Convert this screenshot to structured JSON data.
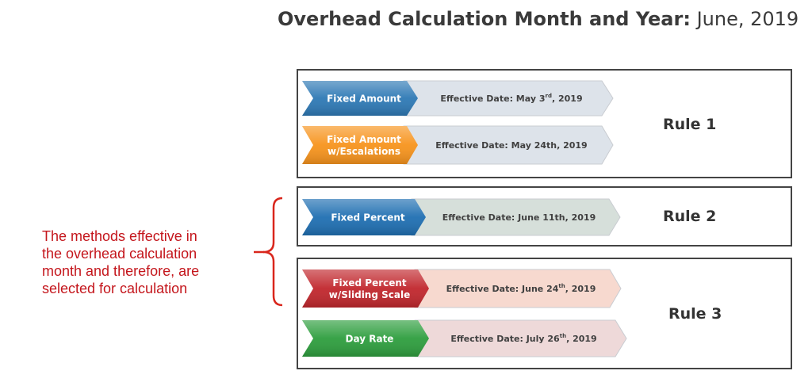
{
  "title": {
    "bold": "Overhead Calculation Month and Year:",
    "value": "June, 2019"
  },
  "rules": [
    {
      "label": "Rule 1",
      "methods": [
        {
          "name_lines": [
            "Fixed Amount"
          ],
          "date_prefix": "Effective Date: May 3",
          "date_sup": "rd",
          "date_suffix": ", 2019",
          "color": "#2e79b5",
          "date_color": "#dde3ea"
        },
        {
          "name_lines": [
            "Fixed Amount",
            "w/Escalations"
          ],
          "date_prefix": "Effective Date: May 24th, 2019",
          "date_sup": "",
          "date_suffix": "",
          "color": "#f7941d",
          "date_color": "#dde3ea"
        }
      ]
    },
    {
      "label": "Rule 2",
      "methods": [
        {
          "name_lines": [
            "Fixed Percent"
          ],
          "date_prefix": "Effective Date: June 11th, 2019",
          "date_sup": "",
          "date_suffix": "",
          "color": "#1f6fb2",
          "date_color": "#d6dfda"
        }
      ]
    },
    {
      "label": "Rule 3",
      "methods": [
        {
          "name_lines": [
            "Fixed Percent",
            "w/Sliding Scale"
          ],
          "date_prefix": "Effective Date: June 24",
          "date_sup": "th",
          "date_suffix": ", 2019",
          "color": "#c1272d",
          "date_color": "#f7d9cf"
        },
        {
          "name_lines": [
            "Day Rate"
          ],
          "date_prefix": "Effective Date: July 26",
          "date_sup": "th",
          "date_suffix": ", 2019",
          "color": "#2e9e3e",
          "date_color": "#eed9d9"
        }
      ]
    }
  ],
  "note_lines": [
    "The methods effective in",
    "the overhead calculation",
    "month and therefore, are",
    "selected for calculation"
  ],
  "colors": {
    "note": "#c4161c",
    "brace": "#d9261c"
  }
}
